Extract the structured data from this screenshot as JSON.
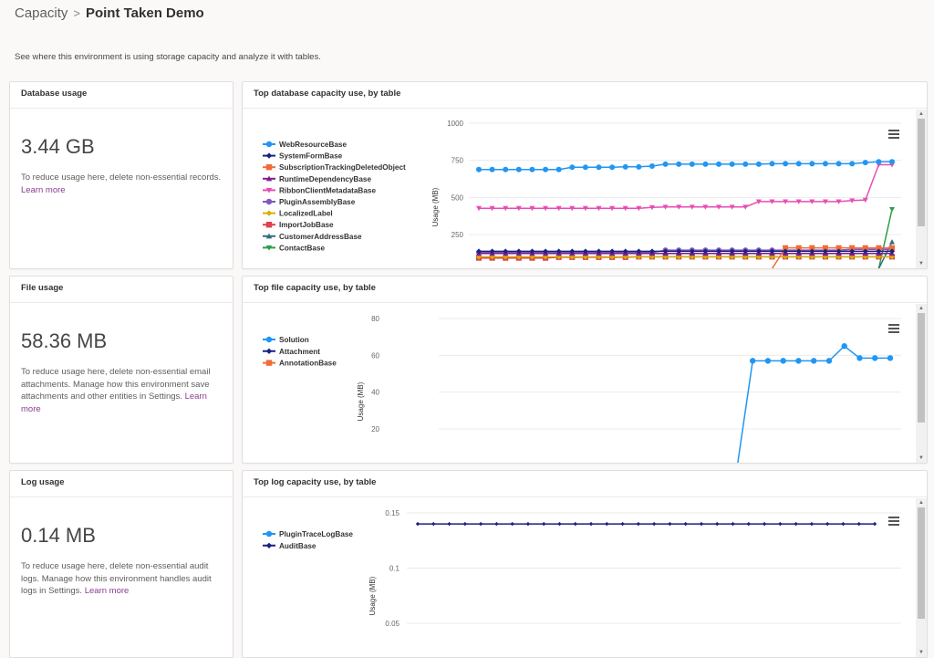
{
  "breadcrumb": {
    "parent": "Capacity",
    "separator": ">",
    "current": "Point Taken Demo"
  },
  "description": "See where this environment is using storage capacity and analyze it with tables.",
  "learn_more_label": "Learn more",
  "menu_icon": "hamburger-menu-icon",
  "summary_cards": {
    "database": {
      "title": "Database usage",
      "value": "3.44 GB",
      "text": "To reduce usage here, delete non-essential records."
    },
    "file": {
      "title": "File usage",
      "value": "58.36 MB",
      "text": "To reduce usage here, delete non-essential email attachments. Manage how this environment save attachments and other entities in Settings.",
      "learn_more_first": "Learn",
      "learn_more_second": "more"
    },
    "log": {
      "title": "Log usage",
      "value": "0.14 MB",
      "text": "To reduce usage here, delete non-essential audit logs. Manage how this environment handles audit logs in Settings."
    }
  },
  "chart_data": [
    {
      "id": "db",
      "type": "line",
      "title": "Top database capacity use, by table",
      "ylabel": "Usage (MB)",
      "xlabel": "",
      "ylim": [
        40,
        1000
      ],
      "yticks": [
        250,
        500,
        750,
        1000
      ],
      "grid": true,
      "legend_position": "left",
      "x_count": 32,
      "series": [
        {
          "name": "WebResourceBase",
          "color": "#2196f3",
          "marker": "circle",
          "values": [
            688,
            688,
            688,
            688,
            688,
            688,
            688,
            703,
            703,
            703,
            703,
            706,
            706,
            711,
            724,
            724,
            724,
            724,
            724,
            724,
            724,
            724,
            727,
            727,
            727,
            727,
            727,
            727,
            727,
            735,
            740,
            740
          ]
        },
        {
          "name": "SystemFormBase",
          "color": "#1a237e",
          "marker": "diamond",
          "values": [
            137,
            137,
            137,
            137,
            137,
            137,
            137,
            137,
            137,
            137,
            137,
            137,
            137,
            137,
            137,
            137,
            137,
            137,
            137,
            137,
            137,
            137,
            137,
            137,
            137,
            137,
            137,
            137,
            137,
            137,
            137,
            137
          ]
        },
        {
          "name": "SubscriptionTrackingDeletedObject",
          "color": "#f26b3a",
          "marker": "square",
          "values": [
            null,
            null,
            null,
            null,
            null,
            null,
            null,
            null,
            null,
            null,
            null,
            null,
            null,
            null,
            null,
            null,
            null,
            null,
            null,
            null,
            null,
            null,
            20,
            160,
            160,
            160,
            160,
            160,
            160,
            160,
            160,
            160
          ]
        },
        {
          "name": "RuntimeDependencyBase",
          "color": "#7b1f8f",
          "marker": "triangle",
          "values": [
            122,
            122,
            122,
            122,
            122,
            122,
            122,
            122,
            122,
            122,
            122,
            122,
            122,
            122,
            122,
            122,
            122,
            122,
            122,
            122,
            122,
            122,
            122,
            122,
            122,
            122,
            122,
            122,
            122,
            122,
            122,
            122
          ]
        },
        {
          "name": "RibbonClientMetadataBase",
          "color": "#e64fb4",
          "marker": "triangle-down",
          "values": [
            427,
            427,
            427,
            427,
            427,
            427,
            427,
            427,
            427,
            427,
            427,
            427,
            427,
            433,
            436,
            436,
            436,
            436,
            436,
            436,
            436,
            472,
            472,
            472,
            472,
            472,
            472,
            472,
            479,
            483,
            720,
            720
          ]
        },
        {
          "name": "PluginAssemblyBase",
          "color": "#7e57c2",
          "marker": "circle",
          "values": [
            128,
            128,
            128,
            128,
            128,
            128,
            128,
            128,
            128,
            128,
            128,
            128,
            128,
            128,
            145,
            145,
            145,
            145,
            145,
            145,
            145,
            145,
            145,
            145,
            145,
            145,
            145,
            145,
            150,
            150,
            150,
            150
          ]
        },
        {
          "name": "LocalizedLabel",
          "color": "#d4b000",
          "marker": "diamond",
          "values": [
            100,
            100,
            100,
            100,
            100,
            100,
            100,
            100,
            100,
            100,
            100,
            100,
            100,
            100,
            100,
            100,
            100,
            100,
            100,
            100,
            100,
            100,
            100,
            100,
            100,
            100,
            100,
            100,
            100,
            100,
            100,
            100
          ]
        },
        {
          "name": "ImportJobBase",
          "color": "#e0404f",
          "marker": "square",
          "values": [
            92,
            92,
            92,
            92,
            92,
            92,
            97,
            97,
            97,
            97,
            97,
            97,
            100,
            100,
            100,
            100,
            100,
            100,
            100,
            100,
            100,
            100,
            100,
            100,
            100,
            100,
            100,
            100,
            100,
            100,
            100,
            100
          ]
        },
        {
          "name": "CustomerAddressBase",
          "color": "#2f6f7f",
          "marker": "triangle",
          "values": [
            null,
            null,
            null,
            null,
            null,
            null,
            null,
            null,
            null,
            null,
            null,
            null,
            null,
            null,
            null,
            null,
            null,
            null,
            null,
            null,
            null,
            null,
            null,
            null,
            null,
            null,
            null,
            null,
            null,
            null,
            20,
            200
          ]
        },
        {
          "name": "ContactBase",
          "color": "#2e9e48",
          "marker": "triangle-down",
          "values": [
            null,
            null,
            null,
            null,
            null,
            null,
            null,
            null,
            null,
            null,
            null,
            null,
            null,
            null,
            null,
            null,
            null,
            null,
            null,
            null,
            null,
            null,
            null,
            null,
            null,
            null,
            null,
            null,
            null,
            null,
            20,
            420
          ]
        }
      ]
    },
    {
      "id": "file",
      "type": "line",
      "title": "Top file capacity use, by table",
      "ylabel": "Usage (MB)",
      "xlabel": "",
      "ylim": [
        0,
        80
      ],
      "yticks": [
        20,
        40,
        60,
        80
      ],
      "grid": true,
      "legend_position": "left",
      "x_count": 30,
      "series": [
        {
          "name": "Solution",
          "color": "#2196f3",
          "marker": "circle",
          "values": [
            null,
            null,
            null,
            null,
            null,
            null,
            null,
            null,
            null,
            null,
            null,
            null,
            null,
            null,
            null,
            null,
            null,
            null,
            null,
            0,
            57,
            57,
            57,
            57,
            57,
            57,
            65,
            58.5,
            58.5,
            58.5
          ]
        },
        {
          "name": "Attachment",
          "color": "#1a237e",
          "marker": "diamond",
          "values": []
        },
        {
          "name": "AnnotationBase",
          "color": "#f26b3a",
          "marker": "square",
          "values": []
        }
      ]
    },
    {
      "id": "log",
      "type": "line",
      "title": "Top log capacity use, by table",
      "ylabel": "Usage (MB)",
      "xlabel": "",
      "ylim": [
        0.02,
        0.155
      ],
      "yticks": [
        0.05,
        0.1,
        0.15
      ],
      "grid": true,
      "legend_position": "left",
      "x_count": 30,
      "series": [
        {
          "name": "PluginTraceLogBase",
          "color": "#2196f3",
          "marker": "circle",
          "values": []
        },
        {
          "name": "AuditBase",
          "color": "#1a237e",
          "marker": "diamond",
          "values": [
            0.14,
            0.14,
            0.14,
            0.14,
            0.14,
            0.14,
            0.14,
            0.14,
            0.14,
            0.14,
            0.14,
            0.14,
            0.14,
            0.14,
            0.14,
            0.14,
            0.14,
            0.14,
            0.14,
            0.14,
            0.14,
            0.14,
            0.14,
            0.14,
            0.14,
            0.14,
            0.14,
            0.14,
            0.14,
            0.14
          ]
        }
      ]
    }
  ]
}
